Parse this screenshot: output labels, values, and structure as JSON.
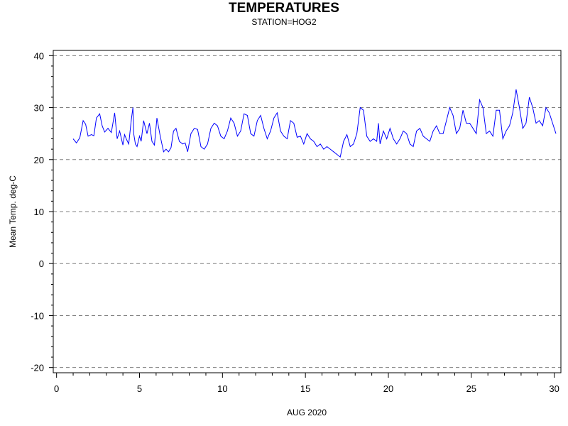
{
  "chart_data": {
    "type": "line",
    "title": "TEMPERATURES",
    "subtitle": "STATION=HOG2",
    "xlabel": "AUG 2020",
    "ylabel": "Mean Temp. deg-C",
    "xlim": [
      -0.2,
      30.4
    ],
    "ylim": [
      -21,
      41
    ],
    "xticks": [
      0,
      5,
      10,
      15,
      20,
      25,
      30
    ],
    "yticks": [
      -20,
      -10,
      0,
      10,
      20,
      30,
      40
    ],
    "grid": "horizontal-dashed",
    "colors": {
      "series": "#0000ff",
      "grid": "#808080",
      "axis": "#000000"
    },
    "series": [
      {
        "x": [
          1.0,
          1.2,
          1.4,
          1.6,
          1.75,
          1.9,
          2.1,
          2.25,
          2.4,
          2.6,
          2.75,
          2.9,
          3.1,
          3.3,
          3.5,
          3.65,
          3.8,
          4.0,
          4.1,
          4.2,
          4.35,
          4.5,
          4.6,
          4.65,
          4.75,
          4.85,
          5.0,
          5.1,
          5.25,
          5.45,
          5.6,
          5.75,
          5.9,
          6.05,
          6.25,
          6.45,
          6.6,
          6.75,
          6.9,
          7.05,
          7.2,
          7.4,
          7.6,
          7.75,
          7.9,
          8.1,
          8.3,
          8.5,
          8.7,
          8.9,
          9.1,
          9.3,
          9.5,
          9.7,
          9.9,
          10.1,
          10.3,
          10.5,
          10.7,
          10.9,
          11.1,
          11.3,
          11.5,
          11.7,
          11.9,
          12.1,
          12.3,
          12.5,
          12.7,
          12.9,
          13.1,
          13.3,
          13.5,
          13.7,
          13.9,
          14.1,
          14.3,
          14.5,
          14.7,
          14.9,
          15.1,
          15.3,
          15.5,
          15.7,
          15.9,
          16.1,
          16.3,
          16.5,
          16.7,
          16.9,
          17.1,
          17.3,
          17.5,
          17.7,
          17.9,
          18.1,
          18.3,
          18.5,
          18.7,
          18.9,
          19.1,
          19.3,
          19.4,
          19.5,
          19.7,
          19.9,
          20.1,
          20.3,
          20.5,
          20.7,
          20.9,
          21.1,
          21.3,
          21.5,
          21.7,
          21.9,
          22.1,
          22.3,
          22.5,
          22.7,
          22.9,
          23.1,
          23.3,
          23.5,
          23.7,
          23.9,
          24.1,
          24.3,
          24.5,
          24.7,
          24.9,
          25.1,
          25.3,
          25.5,
          25.7,
          25.9,
          26.1,
          26.3,
          26.5,
          26.7,
          26.9,
          27.1,
          27.3,
          27.5,
          27.7,
          27.9,
          28.1,
          28.3,
          28.5,
          28.7,
          28.9,
          29.1,
          29.3,
          29.5,
          29.7,
          29.9,
          30.1
        ],
        "values": [
          24.0,
          23.2,
          24.2,
          27.5,
          26.8,
          24.5,
          24.8,
          24.6,
          28.0,
          28.8,
          26.5,
          25.3,
          26.0,
          25.2,
          29.0,
          24.0,
          25.5,
          22.8,
          24.8,
          24.0,
          23.0,
          27.5,
          30.0,
          25.0,
          23.0,
          22.5,
          24.5,
          23.5,
          27.5,
          25.0,
          27.0,
          23.5,
          22.8,
          28.0,
          24.5,
          21.5,
          22.0,
          21.5,
          22.3,
          25.5,
          26.0,
          23.5,
          23.0,
          23.2,
          21.5,
          25.0,
          26.0,
          25.8,
          22.5,
          22.0,
          23.0,
          26.0,
          27.0,
          26.5,
          24.5,
          24.0,
          25.5,
          28.0,
          27.0,
          24.5,
          25.5,
          28.8,
          28.5,
          25.0,
          24.5,
          27.5,
          28.5,
          26.0,
          24.0,
          25.5,
          28.0,
          29.0,
          25.5,
          24.5,
          24.0,
          27.5,
          27.0,
          24.3,
          24.5,
          23.0,
          25.0,
          24.0,
          23.5,
          22.5,
          23.0,
          22.0,
          22.5,
          22.0,
          21.5,
          21.0,
          20.5,
          23.5,
          24.8,
          22.5,
          23.0,
          25.0,
          30.0,
          29.5,
          24.5,
          23.5,
          24.0,
          23.5,
          27.0,
          23.0,
          25.5,
          24.0,
          26.0,
          24.0,
          23.0,
          24.0,
          25.5,
          25.0,
          23.0,
          22.5,
          25.5,
          26.0,
          24.5,
          24.0,
          23.5,
          25.5,
          26.5,
          25.0,
          25.0,
          27.5,
          30.0,
          28.5,
          25.0,
          26.0,
          29.5,
          27.0,
          27.0,
          26.0,
          25.0,
          31.5,
          30.0,
          25.0,
          25.5,
          24.5,
          29.5,
          29.5,
          24.0,
          25.5,
          26.5,
          29.0,
          33.5,
          30.0,
          26.0,
          27.0,
          32.0,
          30.0,
          27.0,
          27.5,
          26.5,
          30.0,
          29.0,
          27.0,
          25.0
        ]
      }
    ]
  }
}
